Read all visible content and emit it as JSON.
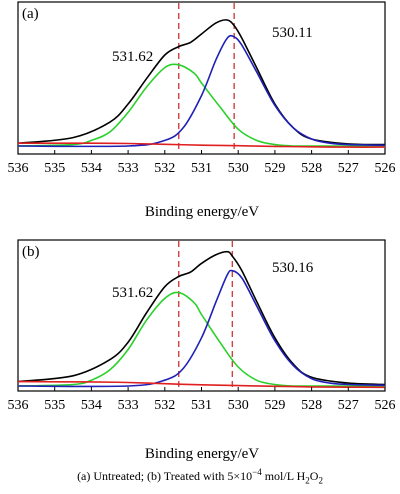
{
  "chart_data": [
    {
      "type": "line",
      "panel_label": "(a)",
      "xlabel": "Binding energy/eV",
      "ylabel": "",
      "xlim": [
        536,
        526
      ],
      "x_reversed": true,
      "x_ticks": [
        "536",
        "535",
        "534",
        "533",
        "532",
        "531",
        "530",
        "529",
        "528",
        "527",
        "526"
      ],
      "y_ticks_shown": false,
      "reference_lines": [
        531.62,
        530.11
      ],
      "annotations": [
        "531.62",
        "530.11"
      ],
      "series": [
        {
          "color": "#000000",
          "x": [
            536,
            534.5,
            533.5,
            533,
            532.5,
            532,
            531.62,
            531.3,
            531,
            530.6,
            530.3,
            530.11,
            529.9,
            529.5,
            529,
            528.5,
            528,
            527,
            526
          ],
          "y": [
            0.02,
            0.06,
            0.17,
            0.3,
            0.48,
            0.65,
            0.71,
            0.74,
            0.8,
            0.88,
            0.9,
            0.86,
            0.77,
            0.56,
            0.3,
            0.13,
            0.05,
            0.015,
            0.01
          ]
        },
        {
          "color": "#2bd12b",
          "peak_center": 531.62,
          "x": [
            536,
            534.5,
            534,
            533.5,
            533,
            532.5,
            532,
            531.62,
            531.2,
            531,
            530.5,
            530,
            529.5,
            529,
            528.5,
            528,
            527,
            526
          ],
          "y": [
            0.0,
            0.01,
            0.04,
            0.1,
            0.24,
            0.42,
            0.56,
            0.58,
            0.52,
            0.45,
            0.28,
            0.12,
            0.04,
            0.01,
            0.0,
            0.0,
            0.0,
            0.0
          ]
        },
        {
          "color": "#2020b8",
          "peak_center": 530.11,
          "x": [
            536,
            533,
            532,
            531.5,
            531,
            530.6,
            530.3,
            530.11,
            529.9,
            529.5,
            529,
            528.5,
            528,
            527.5,
            527,
            526
          ],
          "y": [
            0.0,
            0.0,
            0.04,
            0.13,
            0.36,
            0.62,
            0.77,
            0.78,
            0.72,
            0.53,
            0.29,
            0.13,
            0.05,
            0.02,
            0.01,
            0.005
          ]
        },
        {
          "color": "#e02020",
          "x": [
            536,
            534,
            533,
            532,
            531,
            530,
            529,
            528,
            527,
            526
          ],
          "y": [
            0.02,
            0.02,
            0.018,
            0.012,
            0.006,
            0.002,
            -0.003,
            -0.006,
            -0.008,
            -0.008
          ]
        }
      ]
    },
    {
      "type": "line",
      "panel_label": "(b)",
      "xlabel": "Binding energy/eV",
      "ylabel": "",
      "xlim": [
        536,
        526
      ],
      "x_reversed": true,
      "x_ticks": [
        "536",
        "535",
        "534",
        "533",
        "532",
        "531",
        "530",
        "529",
        "528",
        "527",
        "526"
      ],
      "y_ticks_shown": false,
      "reference_lines": [
        531.62,
        530.16
      ],
      "annotations": [
        "531.62",
        "530.16"
      ],
      "series": [
        {
          "color": "#000000",
          "x": [
            536,
            534.5,
            533.5,
            533,
            532.5,
            532,
            531.62,
            531.3,
            531,
            530.6,
            530.3,
            530.16,
            529.9,
            529.5,
            529,
            528.5,
            528,
            527,
            526
          ],
          "y": [
            0.03,
            0.07,
            0.18,
            0.3,
            0.5,
            0.68,
            0.75,
            0.78,
            0.84,
            0.9,
            0.92,
            0.89,
            0.79,
            0.58,
            0.33,
            0.15,
            0.06,
            0.02,
            0.01
          ]
        },
        {
          "color": "#2bd12b",
          "peak_center": 531.62,
          "x": [
            536,
            534.5,
            534,
            533.5,
            533,
            532.5,
            532,
            531.62,
            531.2,
            531,
            530.5,
            530,
            529.5,
            529,
            528.5,
            528,
            527,
            526
          ],
          "y": [
            0.0,
            0.01,
            0.04,
            0.11,
            0.25,
            0.45,
            0.6,
            0.64,
            0.57,
            0.49,
            0.3,
            0.13,
            0.04,
            0.01,
            0.0,
            0.0,
            0.0,
            0.0
          ]
        },
        {
          "color": "#2020b8",
          "peak_center": 530.16,
          "x": [
            536,
            533,
            532,
            531.5,
            531,
            530.6,
            530.3,
            530.16,
            529.9,
            529.5,
            529,
            528.5,
            528,
            527.5,
            527,
            526
          ],
          "y": [
            0.0,
            0.0,
            0.04,
            0.12,
            0.33,
            0.58,
            0.76,
            0.79,
            0.74,
            0.55,
            0.31,
            0.14,
            0.05,
            0.02,
            0.01,
            0.005
          ]
        },
        {
          "color": "#e02020",
          "x": [
            536,
            534,
            533,
            532,
            531,
            530,
            529,
            528,
            527,
            526
          ],
          "y": [
            0.03,
            0.028,
            0.024,
            0.016,
            0.008,
            0.003,
            -0.002,
            -0.006,
            -0.008,
            -0.009
          ]
        }
      ]
    }
  ],
  "caption": {
    "part1": "(a) Untreated; (b) Treated with 5×10",
    "exp": "−4",
    "part2": " mol/L H",
    "sub1": "2",
    "part3": "O",
    "sub2": "2"
  },
  "style": {
    "reference_line_color": "#d04040",
    "axis_color": "#000000"
  }
}
